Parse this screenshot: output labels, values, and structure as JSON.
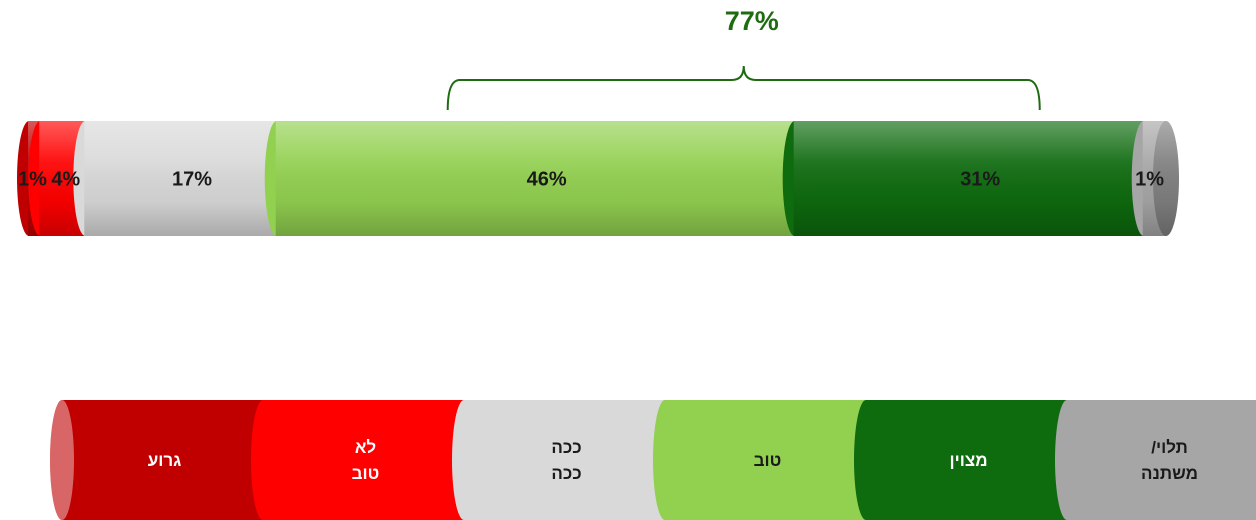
{
  "chart_data": {
    "type": "bar",
    "orientation": "horizontal-stacked",
    "direction": "rtl",
    "series": [
      {
        "name": "תלוי/ משתנה",
        "value": 1,
        "label": "1%",
        "color": "#a6a6a6",
        "label_color": "#1a1a1a"
      },
      {
        "name": "מצוין",
        "value": 31,
        "label": "31%",
        "color": "#0e6b0e",
        "label_color": "#1a1a1a"
      },
      {
        "name": "טוב",
        "value": 46,
        "label": "46%",
        "color": "#92d050",
        "label_color": "#1a1a1a"
      },
      {
        "name": "ככה ככה",
        "value": 17,
        "label": "17%",
        "color": "#d9d9d9",
        "label_color": "#1a1a1a"
      },
      {
        "name": "לא טוב",
        "value": 4,
        "label": "4%",
        "color": "#ff0000",
        "label_color": "#1a1a1a"
      },
      {
        "name": "גרוע",
        "value": 1,
        "label": "1%",
        "color": "#c00000",
        "label_color": "#1a1a1a"
      }
    ],
    "bracket": {
      "label": "77%",
      "covers": [
        "מצוין",
        "טוב"
      ],
      "color": "#1f6b12"
    },
    "legend": {
      "placement": "bottom",
      "items": [
        {
          "lines": [
            "/תלוי",
            "משתנה"
          ],
          "color": "#a6a6a6",
          "text_color": "#1a1a1a"
        },
        {
          "lines": [
            "מצוין"
          ],
          "color": "#0e6b0e",
          "text_color": "#ffffff"
        },
        {
          "lines": [
            "טוב"
          ],
          "color": "#92d050",
          "text_color": "#1a1a1a"
        },
        {
          "lines": [
            "ככה",
            "ככה"
          ],
          "color": "#d9d9d9",
          "text_color": "#1a1a1a"
        },
        {
          "lines": [
            "לא",
            "טוב"
          ],
          "color": "#ff0000",
          "text_color": "#ffffff"
        },
        {
          "lines": [
            "גרוע"
          ],
          "color": "#c00000",
          "text_color": "#ffffff"
        }
      ]
    }
  }
}
